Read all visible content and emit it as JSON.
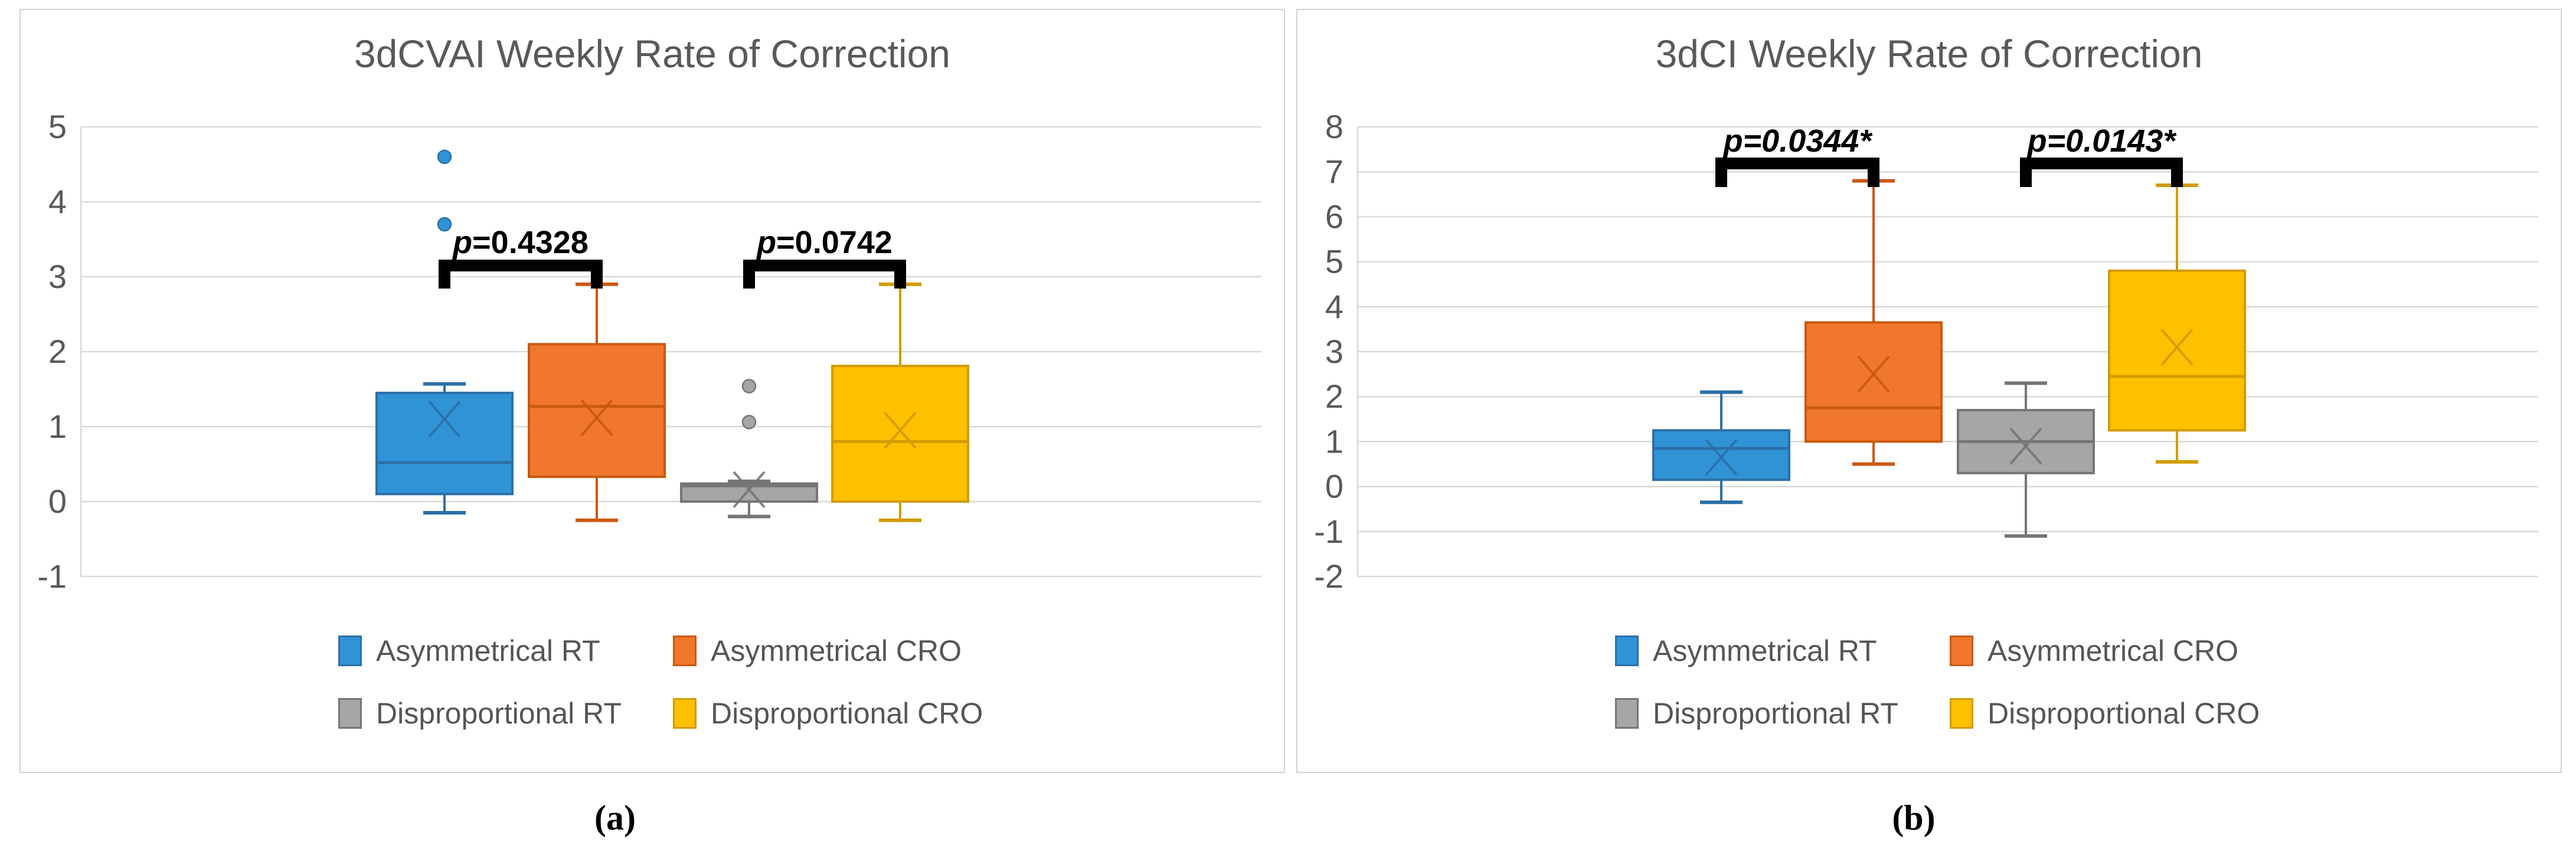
{
  "figure": {
    "background": "#ffffff",
    "panel_border_color": "#d2d2d2",
    "gridline_color": "#d9d9d9",
    "title_color": "#595959",
    "tick_color": "#595959",
    "annotation_color": "#000000"
  },
  "captions": {
    "a": "(a)",
    "b": "(b)"
  },
  "chart_data": [
    {
      "type": "boxplot",
      "title": "3dCVAI Weekly Rate of Correction",
      "xlabel": "",
      "ylabel": "",
      "ylim": [
        -1,
        5
      ],
      "yticks": [
        5,
        4,
        3,
        2,
        1,
        0,
        -1
      ],
      "grid": "horizontal",
      "legend_position": "bottom",
      "series": [
        {
          "name": "Asymmetrical RT",
          "fill": "#3093d6",
          "line": "#2c6fa8",
          "whisker_low": -0.15,
          "q1": 0.1,
          "median": 0.52,
          "q3": 1.45,
          "whisker_high": 1.57,
          "mean": 1.1,
          "outliers": [
            3.7,
            4.6
          ]
        },
        {
          "name": "Asymmetrical CRO",
          "fill": "#f0772c",
          "line": "#c9590f",
          "whisker_low": -0.25,
          "q1": 0.33,
          "median": 1.27,
          "q3": 2.1,
          "whisker_high": 2.9,
          "mean": 1.12,
          "outliers": []
        },
        {
          "name": "Disproportional RT",
          "fill": "#a6a6a6",
          "line": "#757575",
          "whisker_low": -0.2,
          "q1": 0.0,
          "median": 0.21,
          "q3": 0.24,
          "whisker_high": 0.27,
          "mean": 0.16,
          "outliers": [
            1.06,
            1.54
          ]
        },
        {
          "name": "Disproportional CRO",
          "fill": "#ffc000",
          "line": "#d29b00",
          "whisker_low": -0.25,
          "q1": 0.0,
          "median": 0.8,
          "q3": 1.81,
          "whisker_high": 2.9,
          "mean": 0.95,
          "outliers": []
        }
      ],
      "annotations": [
        {
          "label": "p=0.4328",
          "between": [
            0,
            1
          ],
          "italic_all": false
        },
        {
          "label": "p=0.0742",
          "between": [
            2,
            3
          ],
          "italic_all": false
        }
      ]
    },
    {
      "type": "boxplot",
      "title": "3dCI Weekly Rate of Correction",
      "xlabel": "",
      "ylabel": "",
      "ylim": [
        -2,
        8
      ],
      "yticks": [
        8,
        7,
        6,
        5,
        4,
        3,
        2,
        1,
        0,
        -1,
        -2
      ],
      "grid": "horizontal",
      "legend_position": "bottom",
      "series": [
        {
          "name": "Asymmetrical RT",
          "fill": "#3093d6",
          "line": "#2c6fa8",
          "whisker_low": -0.35,
          "q1": 0.15,
          "median": 0.85,
          "q3": 1.25,
          "whisker_high": 2.1,
          "mean": 0.65,
          "outliers": []
        },
        {
          "name": "Asymmetrical CRO",
          "fill": "#f0772c",
          "line": "#c9590f",
          "whisker_low": 0.5,
          "q1": 1.0,
          "median": 1.75,
          "q3": 3.65,
          "whisker_high": 6.8,
          "mean": 2.5,
          "outliers": []
        },
        {
          "name": "Disproportional RT",
          "fill": "#a6a6a6",
          "line": "#757575",
          "whisker_low": -1.1,
          "q1": 0.3,
          "median": 1.0,
          "q3": 1.7,
          "whisker_high": 2.3,
          "mean": 0.9,
          "outliers": []
        },
        {
          "name": "Disproportional CRO",
          "fill": "#ffc000",
          "line": "#d29b00",
          "whisker_low": 0.55,
          "q1": 1.25,
          "median": 2.45,
          "q3": 4.8,
          "whisker_high": 6.7,
          "mean": 3.1,
          "outliers": []
        }
      ],
      "annotations": [
        {
          "label": "p=0.0344*",
          "between": [
            0,
            1
          ],
          "italic_all": true
        },
        {
          "label": "p=0.0143*",
          "between": [
            2,
            3
          ],
          "italic_all": true
        }
      ]
    }
  ]
}
